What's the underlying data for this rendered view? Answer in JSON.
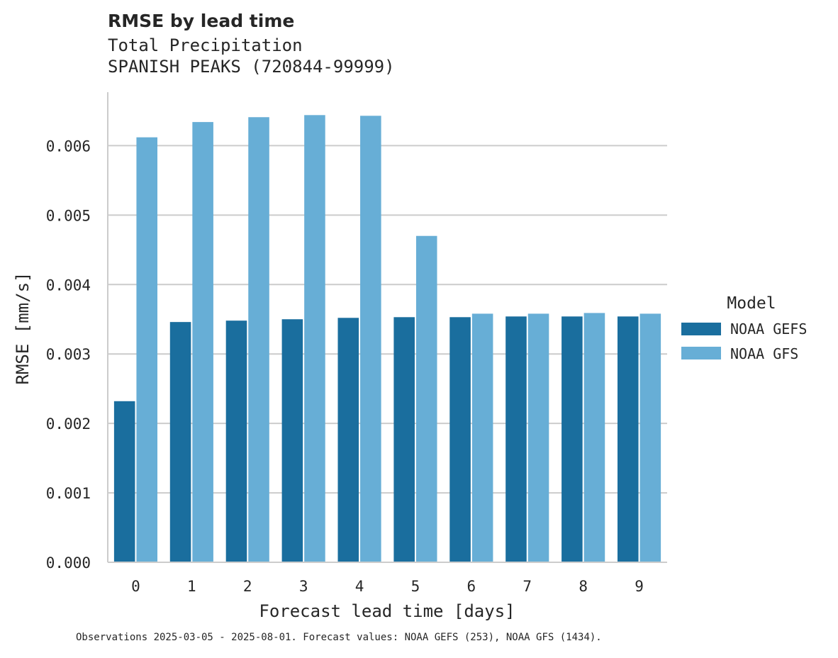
{
  "chart_data": {
    "type": "bar",
    "title": "RMSE by lead time",
    "subtitle_lines": [
      "Total Precipitation",
      "SPANISH PEAKS (720844-99999)"
    ],
    "xlabel": "Forecast lead time [days]",
    "ylabel": "RMSE [mm/s]",
    "categories": [
      "0",
      "1",
      "2",
      "3",
      "4",
      "5",
      "6",
      "7",
      "8",
      "9"
    ],
    "series": [
      {
        "name": "NOAA GEFS",
        "color": "#1a6e9e",
        "values": [
          0.00232,
          0.00346,
          0.00348,
          0.0035,
          0.00352,
          0.00353,
          0.00353,
          0.00354,
          0.00354,
          0.00354
        ]
      },
      {
        "name": "NOAA GFS",
        "color": "#67aed6",
        "values": [
          0.00612,
          0.00634,
          0.00641,
          0.00644,
          0.00643,
          0.0047,
          0.00358,
          0.00358,
          0.00359,
          0.00358
        ]
      }
    ],
    "ylim": [
      0,
      0.00677
    ],
    "yticks": [
      "0.000",
      "0.001",
      "0.002",
      "0.003",
      "0.004",
      "0.005",
      "0.006"
    ],
    "grid": "y",
    "legend": {
      "title": "Model",
      "position": "right"
    }
  },
  "footnote": "Observations 2025-03-05 - 2025-08-01. Forecast values: NOAA GEFS (253), NOAA GFS (1434)."
}
